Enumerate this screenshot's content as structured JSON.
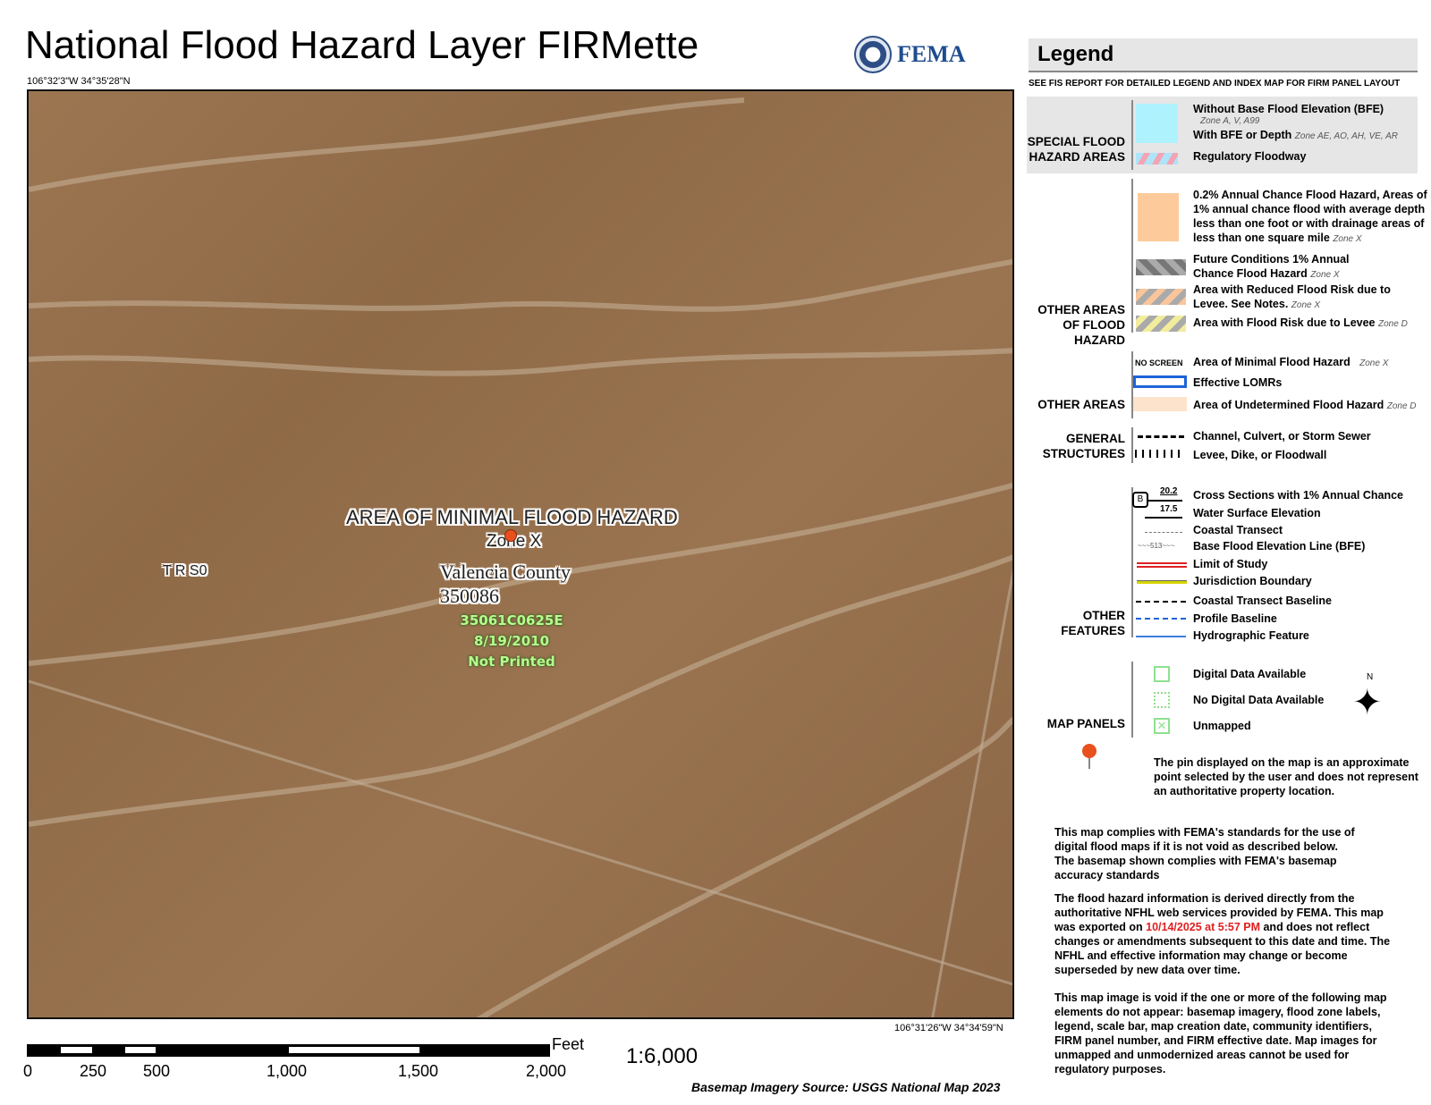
{
  "header": {
    "title": "National Flood Hazard Layer FIRMette",
    "agency": "FEMA",
    "coord_top_left": "106°32'3\"W 34°35'28\"N",
    "coord_bottom_right": "106°31'26\"W 34°34'59\"N"
  },
  "map": {
    "zone_label": "AREA OF MINIMAL FLOOD HAZARD",
    "zone_sub": "Zone X",
    "trs": "T R S0",
    "county": "Valencia County",
    "community_id": "350086",
    "panel": "35061C0625E",
    "effective_date": "8/19/2010",
    "panel_status": "Not Printed",
    "pin_color": "#e8501e"
  },
  "scale": {
    "ticks": [
      "0",
      "250",
      "500",
      "1,000",
      "1,500",
      "2,000"
    ],
    "unit": "Feet",
    "ratio": "1:6,000",
    "source": "Basemap Imagery Source: USGS National Map 2023"
  },
  "legend": {
    "title": "Legend",
    "subtitle": "SEE FIS REPORT FOR DETAILED LEGEND AND INDEX MAP FOR FIRM PANEL LAYOUT",
    "cat_sfha": "SPECIAL FLOOD HAZARD AREAS",
    "cat_other_flood": "OTHER AREAS OF FLOOD HAZARD",
    "cat_other_areas": "OTHER AREAS",
    "cat_structures": "GENERAL STRUCTURES",
    "cat_features": "OTHER FEATURES",
    "cat_panels": "MAP PANELS",
    "no_bfe": "Without Base Flood Elevation (BFE)",
    "no_bfe_zone": "Zone A, V, A99",
    "with_bfe": "With BFE or Depth",
    "with_bfe_zone": "Zone AE, AO, AH, VE, AR",
    "floodway": "Regulatory Floodway",
    "pct02": "0.2% Annual Chance Flood Hazard, Areas of 1% annual chance flood with average depth less than one foot or with drainage areas of less than one square mile",
    "zone_x": "Zone X",
    "zone_d": "Zone D",
    "future": "Future Conditions 1% Annual Chance Flood Hazard",
    "reduced": "Area with Reduced Flood Risk due to Levee. See Notes.",
    "levee_risk": "Area with Flood Risk due to Levee",
    "no_screen": "NO SCREEN",
    "minimal": "Area of Minimal Flood Hazard",
    "lomr": "Effective LOMRs",
    "undetermined": "Area of Undetermined Flood Hazard",
    "channel": "Channel, Culvert, or Storm Sewer",
    "levee": "Levee, Dike, or Floodwall",
    "xs_val1": "20.2",
    "xs_val2": "17.5",
    "xs_letter": "B",
    "cross": "Cross Sections with 1% Annual Chance",
    "wse": "Water Surface Elevation",
    "coastal": "Coastal Transect",
    "bfe_line": "Base Flood Elevation Line (BFE)",
    "bfe_num": "513",
    "limit": "Limit of Study",
    "juris": "Jurisdiction Boundary",
    "ctb": "Coastal Transect Baseline",
    "profile": "Profile Baseline",
    "hydro": "Hydrographic Feature",
    "digital": "Digital Data Available",
    "no_digital": "No Digital Data Available",
    "unmapped": "Unmapped",
    "north": "N",
    "pin_note": "The pin displayed on the map is an approximate point selected by the user and does not represent an authoritative property location."
  },
  "notes": {
    "n1": "This map complies with FEMA's standards for the use of digital flood maps if it is not void as described below. The basemap shown complies with FEMA's basemap accuracy standards",
    "n2a": "The flood hazard information is derived directly from the authoritative NFHL web services provided by FEMA. This map was exported on",
    "n2date": "10/14/2025 at 5:57 PM",
    "n2b": "and does not reflect changes or amendments subsequent to this date and time. The NFHL and effective information may change or become superseded by new data over time.",
    "n3": "This map image is void if the one or more of the following map elements do not appear: basemap imagery, flood zone labels, legend, scale bar, map creation date, community identifiers, FIRM panel number, and FIRM effective date. Map images for unmapped and unmodernized areas cannot be used for regulatory purposes."
  }
}
